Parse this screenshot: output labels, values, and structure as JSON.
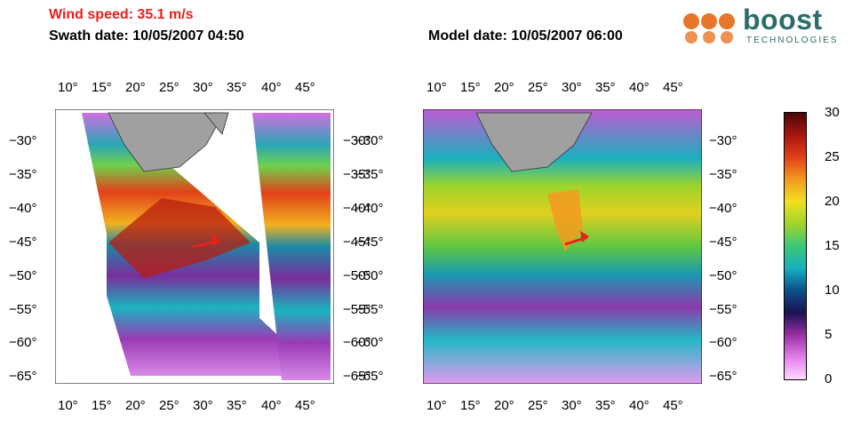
{
  "header": {
    "wind_speed": "Wind speed: 35.1 m/s",
    "swath_date": "Swath date: 10/05/2007 04:50",
    "model_date": "Model date: 10/05/2007 06:00"
  },
  "logo": {
    "name": "boost",
    "subtitle": "TECHNOLOGIES"
  },
  "lon_labels": [
    "10°",
    "15°",
    "20°",
    "25°",
    "30°",
    "35°",
    "40°",
    "45°"
  ],
  "lat_labels": [
    "−30°",
    "−35°",
    "−40°",
    "−45°",
    "−50°",
    "−55°",
    "−60°",
    "−65°"
  ],
  "colorbar": {
    "ticks": [
      "30",
      "25",
      "20",
      "15",
      "10",
      "5",
      "0"
    ],
    "stops": [
      "#ffd8ff",
      "#e27fe9",
      "#9a2ea6",
      "#1a1250",
      "#0b4f8a",
      "#15b0bf",
      "#3dc777",
      "#9ed42a",
      "#f2e020",
      "#f29a20",
      "#e2401a",
      "#a8150e",
      "#4d0606"
    ]
  },
  "colors": {
    "land": "#a0a0a0",
    "arrow": "#e8201c",
    "title_red": "#e8201c",
    "brand": "#2a6d6a"
  }
}
